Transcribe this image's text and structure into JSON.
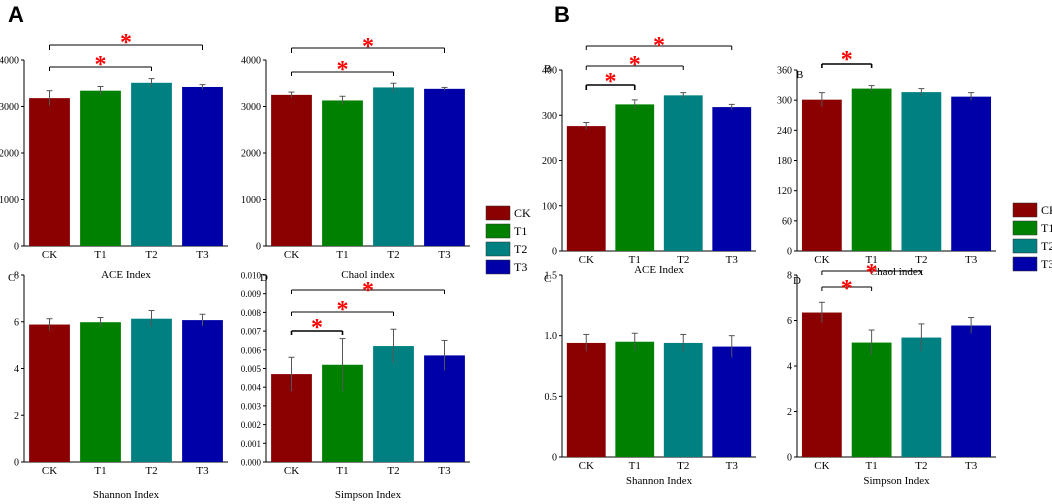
{
  "figure": {
    "panel_a": "A",
    "panel_b": "B",
    "colors": {
      "CK": "#8b0000",
      "T1": "#008000",
      "T2": "#008080",
      "T3": "#0000a8"
    },
    "legend_a": [
      "CK",
      "T1",
      "T2",
      "T3"
    ],
    "legend_b": [
      "CK",
      "T1",
      "T2",
      "T3"
    ]
  },
  "chart_data": [
    {
      "id": "a_ace",
      "type": "bar",
      "title": "",
      "xlabel": "ACE Index",
      "ylabel": "",
      "categories": [
        "CK",
        "T1",
        "T2",
        "T3"
      ],
      "values": [
        3180,
        3340,
        3510,
        3420
      ],
      "errors": [
        160,
        90,
        90,
        50
      ],
      "ylim": [
        0,
        4000
      ],
      "ticks": [
        "0",
        "1000",
        "2000",
        "3000",
        "4000"
      ],
      "significance": [
        {
          "from": "CK",
          "to": "T2",
          "label": "*"
        },
        {
          "from": "CK",
          "to": "T3",
          "label": "*"
        }
      ]
    },
    {
      "id": "a_chao",
      "type": "bar",
      "title": "",
      "xlabel": "Chaol index",
      "ylabel": "",
      "categories": [
        "CK",
        "T1",
        "T2",
        "T3"
      ],
      "values": [
        3250,
        3130,
        3410,
        3380
      ],
      "errors": [
        60,
        90,
        90,
        30
      ],
      "ylim": [
        0,
        4000
      ],
      "ticks": [
        "0",
        "1000",
        "2000",
        "3000",
        "4000"
      ],
      "significance": [
        {
          "from": "CK",
          "to": "T2",
          "label": "*"
        },
        {
          "from": "CK",
          "to": "T3",
          "label": "*"
        }
      ]
    },
    {
      "id": "a_shannon",
      "type": "bar",
      "title": "",
      "xlabel": "Shannon Index",
      "ylabel": "",
      "panel_label": "C",
      "categories": [
        "CK",
        "T1",
        "T2",
        "T3"
      ],
      "values": [
        5.88,
        5.98,
        6.13,
        6.07
      ],
      "errors": [
        0.25,
        0.2,
        0.35,
        0.25
      ],
      "ylim": [
        0,
        8
      ],
      "ticks": [
        "0",
        "2",
        "4",
        "6",
        "8"
      ],
      "significance": []
    },
    {
      "id": "a_simpson",
      "type": "bar",
      "title": "",
      "xlabel": "Simpson Index",
      "ylabel": "",
      "panel_label": "D",
      "categories": [
        "CK",
        "T1",
        "T2",
        "T3"
      ],
      "values": [
        0.0047,
        0.0052,
        0.0062,
        0.0057
      ],
      "errors": [
        0.0009,
        0.0014,
        0.0009,
        0.0008
      ],
      "ylim": [
        0,
        0.01
      ],
      "ticks": [
        "0.000",
        "0.001",
        "0.002",
        "0.003",
        "0.004",
        "0.005",
        "0.006",
        "0.007",
        "0.008",
        "0.009",
        "0.010"
      ],
      "significance": [
        {
          "from": "CK",
          "to": "T1",
          "label": "*"
        },
        {
          "from": "CK",
          "to": "T2",
          "label": "*"
        },
        {
          "from": "CK",
          "to": "T3",
          "label": "*"
        }
      ]
    },
    {
      "id": "b_ace",
      "type": "bar",
      "title": "",
      "xlabel": "ACE Index",
      "ylabel": "",
      "panel_label": "B",
      "categories": [
        "CK",
        "T1",
        "T2",
        "T3"
      ],
      "values": [
        276,
        324,
        344,
        318
      ],
      "errors": [
        8,
        10,
        6,
        6
      ],
      "ylim": [
        0,
        400
      ],
      "ticks": [
        "0",
        "100",
        "200",
        "300",
        "400"
      ],
      "significance": [
        {
          "from": "CK",
          "to": "T1",
          "label": "*"
        },
        {
          "from": "CK",
          "to": "T2",
          "label": "*"
        },
        {
          "from": "CK",
          "to": "T3",
          "label": "*"
        }
      ]
    },
    {
      "id": "b_chao",
      "type": "bar",
      "title": "",
      "xlabel": "Chaol index",
      "ylabel": "",
      "panel_label": "B",
      "categories": [
        "CK",
        "T1",
        "T2",
        "T3"
      ],
      "values": [
        301,
        323,
        316,
        307
      ],
      "errors": [
        14,
        6,
        7,
        8
      ],
      "ylim": [
        0,
        360
      ],
      "ticks": [
        "0",
        "60",
        "120",
        "180",
        "240",
        "300",
        "360"
      ],
      "significance": [
        {
          "from": "CK",
          "to": "T1",
          "label": "*"
        }
      ]
    },
    {
      "id": "b_shannon",
      "type": "bar",
      "title": "",
      "xlabel": "Shannon Index",
      "ylabel": "",
      "panel_label": "C",
      "categories": [
        "CK",
        "T1",
        "T2",
        "T3"
      ],
      "values": [
        0.94,
        0.95,
        0.94,
        0.91
      ],
      "errors": [
        0.07,
        0.07,
        0.07,
        0.09
      ],
      "ylim": [
        0,
        1.5
      ],
      "ticks": [
        "0",
        "0.5",
        "1.0",
        "1.5"
      ],
      "significance": []
    },
    {
      "id": "b_simpson",
      "type": "bar",
      "title": "",
      "xlabel": "Simpson Index",
      "ylabel": "",
      "panel_label": "D",
      "categories": [
        "CK",
        "T1",
        "T2",
        "T3"
      ],
      "values": [
        6.35,
        5.03,
        5.25,
        5.78
      ],
      "errors": [
        0.45,
        0.55,
        0.6,
        0.35
      ],
      "ylim": [
        0,
        8
      ],
      "ticks": [
        "0",
        "2",
        "4",
        "6",
        "8"
      ],
      "significance": [
        {
          "from": "CK",
          "to": "T1",
          "label": "*"
        },
        {
          "from": "CK",
          "to": "T2",
          "label": "*"
        }
      ]
    }
  ]
}
